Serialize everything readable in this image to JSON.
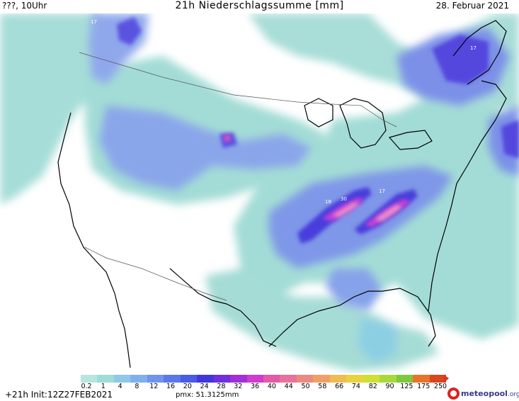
{
  "header": {
    "left": "???, 10Uhr",
    "title": "21h Niederschlagssumme [mm]",
    "right": "28. Februar 2021"
  },
  "map": {
    "labels": [
      "17",
      "18",
      "30",
      "17",
      "17"
    ],
    "colors": {
      "land": "#ffffff",
      "light_precip": "#9fd9d4",
      "mid_precip": "#7f99e8",
      "heavy_precip": "#4a3bd8",
      "extreme_precip": "#e04fc0",
      "coastline": "#000000",
      "border": "#555555"
    }
  },
  "legend": {
    "ticks": [
      "0.2",
      "1",
      "4",
      "8",
      "12",
      "16",
      "20",
      "24",
      "28",
      "32",
      "36",
      "40",
      "44",
      "50",
      "58",
      "66",
      "74",
      "82",
      "90",
      "125",
      "175",
      "250"
    ],
    "colors": [
      "#b7e6e1",
      "#9fdcd6",
      "#8fc9e9",
      "#7fb0ee",
      "#6f94ee",
      "#5b78ea",
      "#4a5be6",
      "#4136de",
      "#6f2fe0",
      "#a22fdb",
      "#d23bd0",
      "#e25aa8",
      "#e8729a",
      "#ec8a80",
      "#f0a067",
      "#f0bc52",
      "#e9d23e",
      "#cfe033",
      "#a8d93a",
      "#7fc83d",
      "#e8742a",
      "#d9471f"
    ]
  },
  "footer": {
    "init": "+21h Init:12Z27FEB2021",
    "pmax": "pmx: 51.3125mm",
    "brand": "meteopool",
    "brand_tld": ".org"
  }
}
